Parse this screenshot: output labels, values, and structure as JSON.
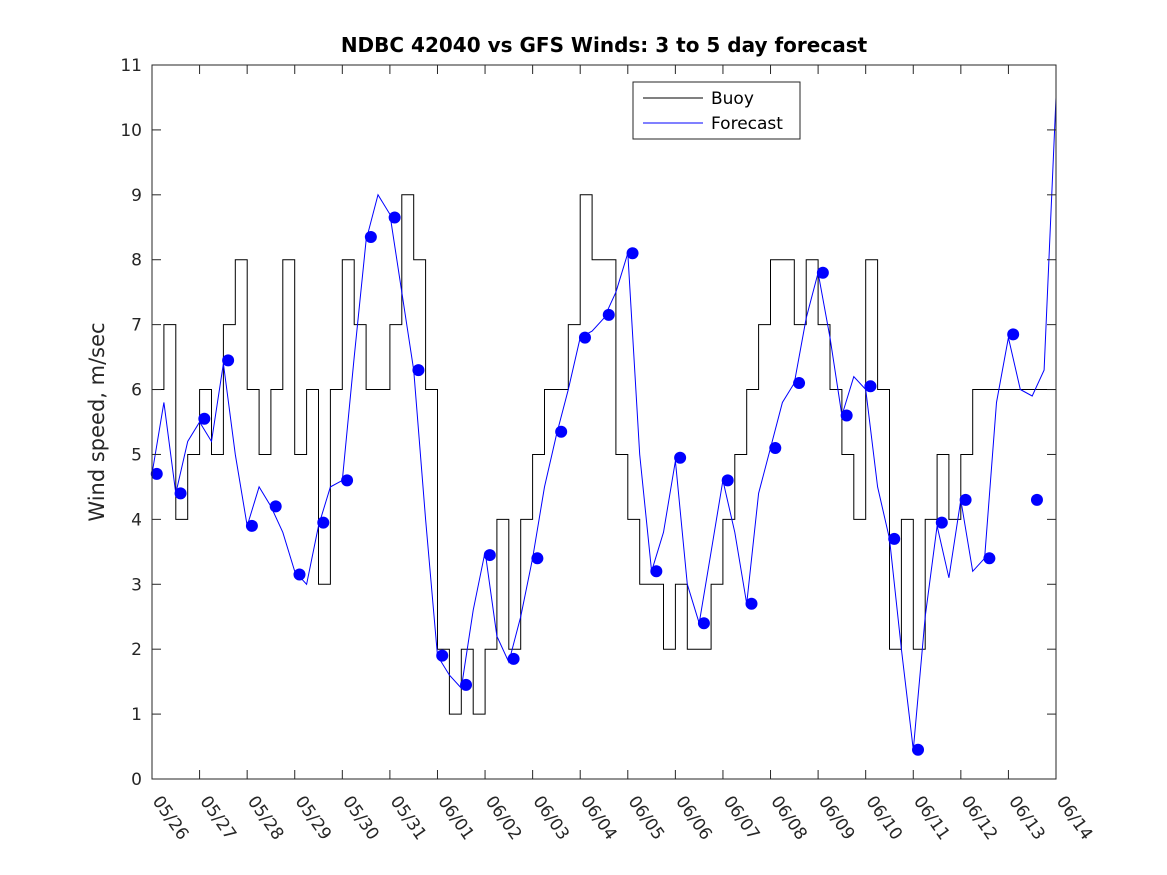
{
  "chart_data": {
    "type": "line",
    "title": "NDBC 42040 vs GFS Winds: 3 to 5 day forecast",
    "xlabel": "",
    "ylabel": "Wind speed, m/sec",
    "xlim": [
      0,
      19
    ],
    "ylim": [
      0,
      11
    ],
    "yticks": [
      0,
      1,
      2,
      3,
      4,
      5,
      6,
      7,
      8,
      9,
      10,
      11
    ],
    "xtick_labels": [
      "05/26",
      "05/27",
      "05/28",
      "05/29",
      "05/30",
      "05/31",
      "06/01",
      "06/02",
      "06/03",
      "06/04",
      "06/05",
      "06/06",
      "06/07",
      "06/08",
      "06/09",
      "06/10",
      "06/11",
      "06/12",
      "06/13",
      "06/14"
    ],
    "grid": false,
    "legend_position": "top-right",
    "legend": [
      "Buoy",
      "Forecast"
    ],
    "colors": {
      "buoy": "#000000",
      "forecast": "#0000ff",
      "axes": "#262626"
    },
    "series": [
      {
        "name": "Buoy",
        "x": [
          0.0,
          0.25,
          0.5,
          0.75,
          1.0,
          1.25,
          1.5,
          1.75,
          2.0,
          2.25,
          2.5,
          2.75,
          3.0,
          3.25,
          3.5,
          3.75,
          4.0,
          4.25,
          4.5,
          4.75,
          5.0,
          5.25,
          5.5,
          5.75,
          6.0,
          6.25,
          6.5,
          6.75,
          7.0,
          7.25,
          7.5,
          7.75,
          8.0,
          8.25,
          8.5,
          8.75,
          9.0,
          9.25,
          9.5,
          9.75,
          10.0,
          10.25,
          10.5,
          10.75,
          11.0,
          11.25,
          11.5,
          11.75,
          12.0,
          12.25,
          12.5,
          12.75,
          13.0,
          13.25,
          13.5,
          13.75,
          14.0,
          14.25,
          14.5,
          14.75,
          15.0,
          15.25,
          15.5,
          15.75,
          16.0,
          16.25,
          16.5,
          16.75,
          17.0,
          17.25,
          17.5,
          17.75,
          18.0,
          18.25,
          18.5,
          18.75,
          19.0
        ],
        "values": [
          6,
          7,
          4,
          5,
          6,
          5,
          7,
          8,
          6,
          5,
          6,
          8,
          5,
          6,
          3,
          6,
          8,
          7,
          6,
          6,
          7,
          9,
          8,
          6,
          2,
          1,
          2,
          1,
          2,
          4,
          2,
          4,
          5,
          6,
          6,
          7,
          9,
          8,
          8,
          5,
          4,
          3,
          3,
          2,
          3,
          2,
          2,
          3,
          4,
          5,
          6,
          7,
          8,
          8,
          7,
          8,
          7,
          6,
          5,
          4,
          8,
          6,
          2,
          4,
          2,
          4,
          5,
          4,
          5,
          6,
          6,
          6,
          6,
          6,
          6,
          6,
          6
        ]
      },
      {
        "name": "Forecast",
        "x": [
          0.0,
          0.25,
          0.5,
          0.75,
          1.0,
          1.25,
          1.5,
          1.75,
          2.0,
          2.25,
          2.5,
          2.75,
          3.0,
          3.25,
          3.5,
          3.75,
          4.0,
          4.25,
          4.5,
          4.75,
          5.0,
          5.25,
          5.5,
          5.75,
          6.0,
          6.25,
          6.5,
          6.75,
          7.0,
          7.25,
          7.5,
          7.75,
          8.0,
          8.25,
          8.5,
          8.75,
          9.0,
          9.25,
          9.5,
          9.75,
          10.0,
          10.25,
          10.5,
          10.75,
          11.0,
          11.25,
          11.5,
          11.75,
          12.0,
          12.25,
          12.5,
          12.75,
          13.0,
          13.25,
          13.5,
          13.75,
          14.0,
          14.25,
          14.5,
          14.75,
          15.0,
          15.25,
          15.5,
          15.75,
          16.0,
          16.25,
          16.5,
          16.75,
          17.0,
          17.25,
          17.5,
          17.75,
          18.0,
          18.25,
          18.5,
          18.75,
          19.0
        ],
        "values": [
          4.7,
          5.8,
          4.4,
          5.2,
          5.5,
          5.2,
          6.4,
          5.0,
          3.9,
          4.5,
          4.2,
          3.8,
          3.2,
          3.0,
          3.9,
          4.5,
          4.6,
          6.5,
          8.3,
          9.0,
          8.7,
          7.5,
          6.3,
          4.0,
          1.9,
          1.6,
          1.4,
          2.6,
          3.5,
          2.2,
          1.8,
          2.5,
          3.4,
          4.5,
          5.3,
          6.0,
          6.8,
          6.9,
          7.1,
          7.5,
          8.1,
          5.0,
          3.2,
          3.8,
          4.9,
          3.0,
          2.4,
          3.5,
          4.6,
          3.8,
          2.7,
          4.4,
          5.1,
          5.8,
          6.1,
          7.1,
          7.8,
          6.8,
          5.6,
          6.2,
          6.0,
          4.5,
          3.7,
          2.0,
          0.45,
          2.5,
          3.9,
          3.1,
          4.3,
          3.2,
          3.4,
          5.8,
          6.8,
          6.0,
          5.9,
          6.3,
          10.5
        ]
      },
      {
        "name": "",
        "marker": "circle",
        "x": [
          0.1,
          0.6,
          1.1,
          1.6,
          2.1,
          2.6,
          3.1,
          3.6,
          4.1,
          4.6,
          5.1,
          5.6,
          6.1,
          6.6,
          7.1,
          7.6,
          8.1,
          8.6,
          9.1,
          9.6,
          10.1,
          10.6,
          11.1,
          11.6,
          12.1,
          12.6,
          13.1,
          13.6,
          14.1,
          14.6,
          15.1,
          15.6,
          16.1,
          16.6,
          17.1,
          17.6,
          18.1,
          18.6
        ],
        "values": [
          4.7,
          4.4,
          5.55,
          6.45,
          3.9,
          4.2,
          3.15,
          3.95,
          4.6,
          8.35,
          8.65,
          6.3,
          1.9,
          1.45,
          3.45,
          1.85,
          3.4,
          5.35,
          6.8,
          7.15,
          8.1,
          3.2,
          4.95,
          2.4,
          4.6,
          2.7,
          5.1,
          6.1,
          7.8,
          5.6,
          6.05,
          3.7,
          0.45,
          3.95,
          4.3,
          3.4,
          6.85,
          4.3
        ]
      }
    ]
  }
}
